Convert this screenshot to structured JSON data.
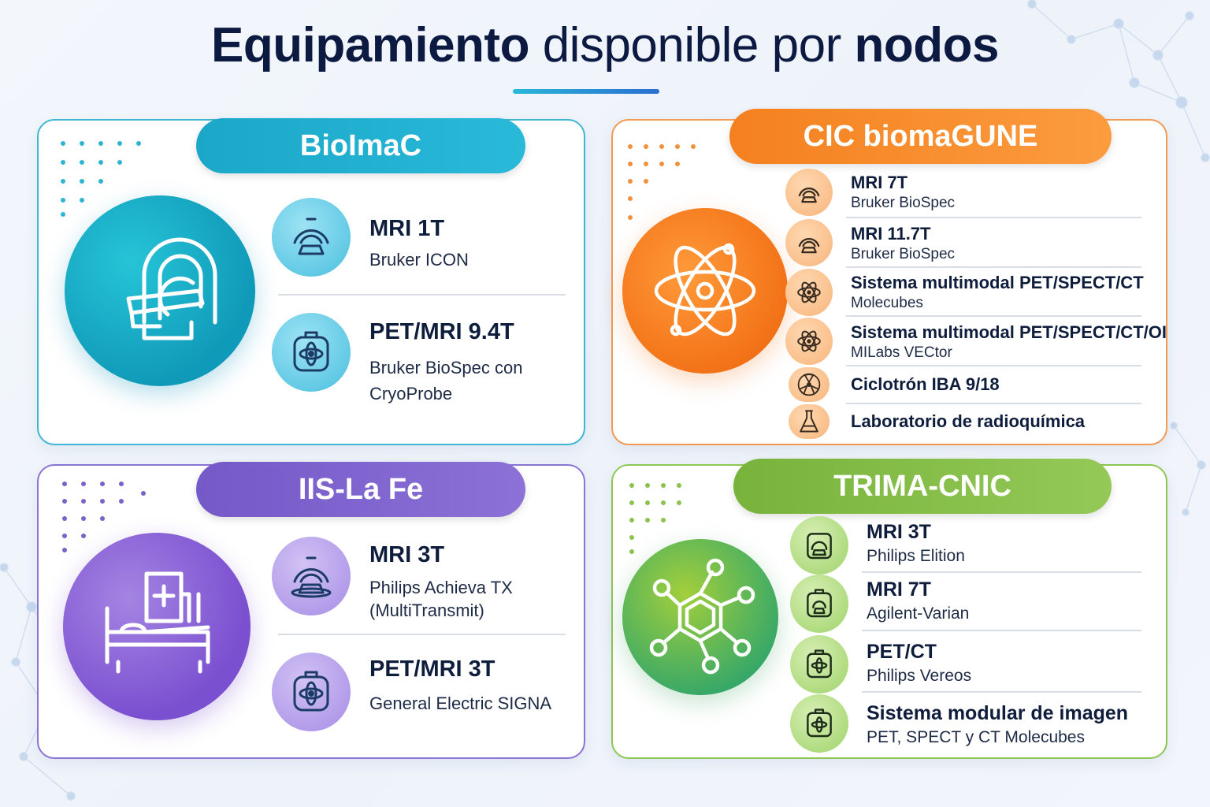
{
  "title": {
    "bold1": "Equipamiento",
    "light": "disponible por",
    "bold2": "nodos"
  },
  "nodes": {
    "bioimac": {
      "name": "BioImaC",
      "color": "#1ba7c8",
      "items": [
        {
          "name": "MRI 1T",
          "sub": "Bruker ICON",
          "icon": "mri-scanner-icon"
        },
        {
          "name": "PET/MRI 9.4T",
          "sub": "Bruker BioSpec con",
          "sub2": "CryoProbe",
          "icon": "pet-mri-icon"
        }
      ],
      "hero_icon": "mri-machine-icon"
    },
    "cic": {
      "name": "CIC biomaGUNE",
      "color": "#f5801f",
      "items": [
        {
          "name": "MRI 7T",
          "sub": "Bruker BioSpec",
          "icon": "mri-scanner-icon"
        },
        {
          "name": "MRI 11.7T",
          "sub": "Bruker BioSpec",
          "icon": "mri-scanner-icon"
        },
        {
          "name": "Sistema multimodal PET/SPECT/CT",
          "sub": "Molecubes",
          "icon": "atom-icon"
        },
        {
          "name": "Sistema multimodal PET/SPECT/CT/OI",
          "sub": "MILabs VECtor",
          "icon": "atom-icon"
        },
        {
          "name": "Ciclotrón IBA 9/18",
          "sub": "",
          "icon": "radiation-icon"
        },
        {
          "name": "Laboratorio de radioquímica",
          "sub": "",
          "icon": "flask-icon"
        }
      ],
      "hero_icon": "atom-icon"
    },
    "iis": {
      "name": "IIS-La Fe",
      "color": "#7459c8",
      "items": [
        {
          "name": "MRI 3T",
          "sub": "Philips Achieva TX",
          "sub2": "(MultiTransmit)",
          "icon": "mri-scanner-icon"
        },
        {
          "name": "PET/MRI 3T",
          "sub": "General Electric SIGNA",
          "icon": "pet-mri-icon"
        }
      ],
      "hero_icon": "hospital-bed-icon"
    },
    "trima": {
      "name": "TRIMA-CNIC",
      "color": "#78b33c",
      "items": [
        {
          "name": "MRI 3T",
          "sub": "Philips Elition",
          "icon": "mri-scanner-icon"
        },
        {
          "name": "MRI 7T",
          "sub": "Agilent-Varian",
          "icon": "mri-scanner-icon"
        },
        {
          "name": "PET/CT",
          "sub": "Philips Vereos",
          "icon": "pet-mri-icon"
        },
        {
          "name": "Sistema modular de imagen",
          "sub": "PET, SPECT y CT Molecubes",
          "icon": "pet-mri-icon"
        }
      ],
      "hero_icon": "molecule-icon"
    }
  }
}
